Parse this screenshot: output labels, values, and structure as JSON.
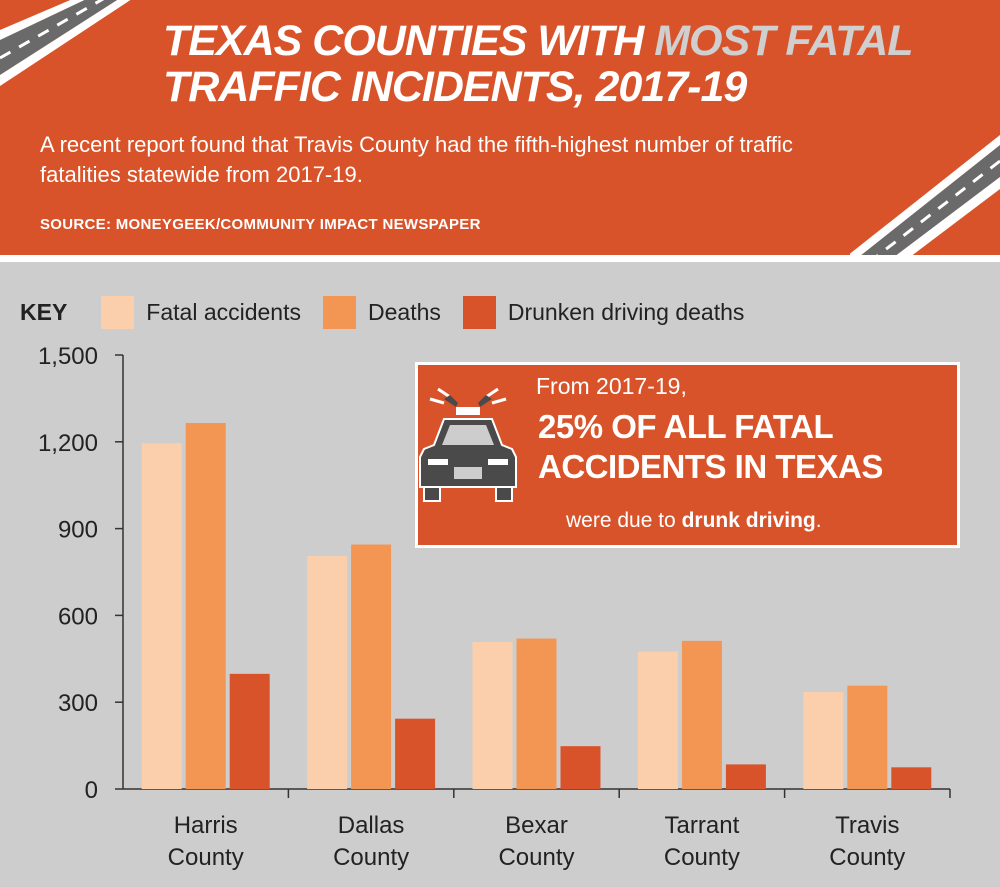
{
  "header": {
    "title_part1": "TEXAS COUNTIES WITH ",
    "title_highlight": "MOST FATAL",
    "title_part2": "TRAFFIC INCIDENTS, 2017-19",
    "subtitle": "A recent report found that Travis County had the fifth-highest number of traffic fatalities statewide from 2017-19.",
    "source": "SOURCE: MONEYGEEK/COMMUNITY IMPACT NEWSPAPER"
  },
  "legend": {
    "key_label": "KEY"
  },
  "callout": {
    "line1": "From 2017-19,",
    "line2": "25% OF ALL FATAL",
    "line3": "ACCIDENTS IN TEXAS",
    "line4_pre": "were due to ",
    "line4_bold": "drunk driving",
    "line4_post": ".",
    "icon": "police-car-icon"
  },
  "colors": {
    "header_bg": "#d9532a",
    "panel_bg": "#cdcdcd",
    "fatal_accidents": "#fbcfab",
    "deaths": "#f39653",
    "drunken_driving_deaths": "#d9532a"
  },
  "chart_data": {
    "type": "bar",
    "categories": [
      [
        "Harris",
        "County"
      ],
      [
        "Dallas",
        "County"
      ],
      [
        "Bexar",
        "County"
      ],
      [
        "Tarrant",
        "County"
      ],
      [
        "Travis",
        "County"
      ]
    ],
    "series": [
      {
        "name": "Fatal accidents",
        "values": [
          1195,
          805,
          508,
          475,
          335
        ]
      },
      {
        "name": "Deaths",
        "values": [
          1265,
          845,
          520,
          512,
          357
        ]
      },
      {
        "name": "Drunken driving deaths",
        "values": [
          398,
          243,
          148,
          85,
          75
        ]
      }
    ],
    "ylim": [
      0,
      1500
    ],
    "yticks": [
      0,
      300,
      600,
      900,
      1200,
      1500
    ],
    "ytick_labels": [
      "0",
      "300",
      "600",
      "900",
      "1,200",
      "1,500"
    ],
    "grid": false,
    "legend_position": "top-left"
  }
}
